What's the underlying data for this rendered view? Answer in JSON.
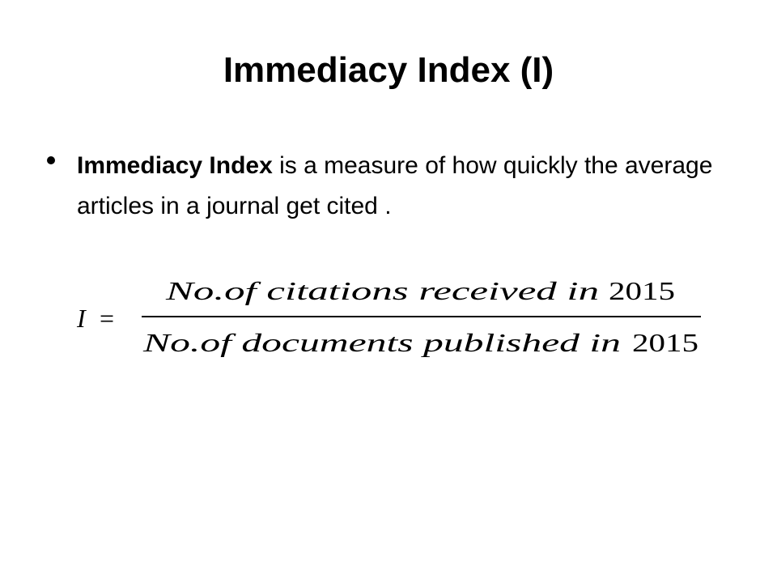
{
  "slide": {
    "title": "Immediacy Index (I)",
    "bullet": {
      "bold": "Immediacy Index",
      "text": " is a measure of how quickly the average articles in a journal get cited ."
    },
    "formula": {
      "lhs": "I",
      "equals": "=",
      "numerator": {
        "text": "No.of citations received in",
        "year": "2015"
      },
      "denominator": {
        "text": "No.of documents published in",
        "year": "2015"
      }
    }
  }
}
